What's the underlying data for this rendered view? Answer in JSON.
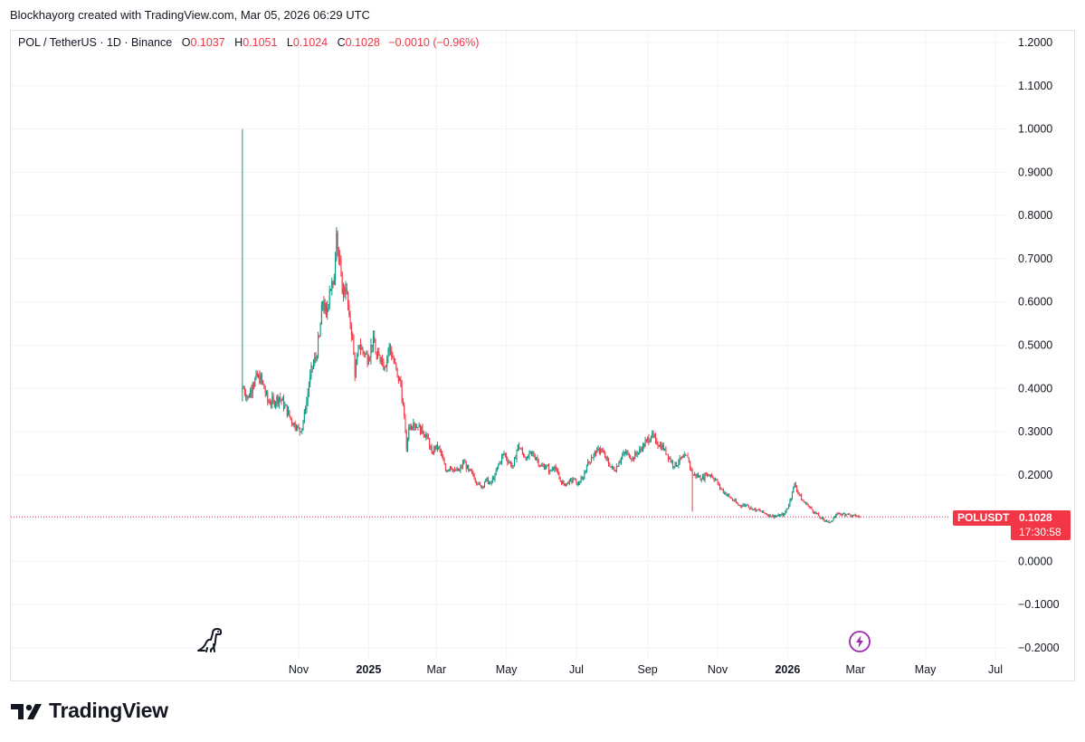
{
  "credit": "Blockhayorg created with TradingView.com, Mar 05, 2026 06:29 UTC",
  "legend": {
    "symbol": "POL / TetherUS · 1D · Binance",
    "open_label": "O",
    "open": "0.1037",
    "high_label": "H",
    "high": "0.1051",
    "low_label": "L",
    "low": "0.1024",
    "close_label": "C",
    "close": "0.1028",
    "change": "−0.0010 (−0.96%)"
  },
  "badges": {
    "ticker": "POLUSDT",
    "price": "0.1028",
    "countdown": "17:30:58"
  },
  "footer": {
    "brand": "TradingView"
  },
  "icons": {
    "logo": "tradingview-logo-icon",
    "dino": "dino-icon",
    "bolt": "lightning-icon"
  },
  "colors": {
    "up": "#089981",
    "down": "#f23645",
    "grid": "#f0f3fa",
    "axis_text": "#131722"
  },
  "chart_data": {
    "type": "candlestick",
    "title": "",
    "yticks": [
      "1.2000",
      "1.1000",
      "1.0000",
      "0.9000",
      "0.8000",
      "0.7000",
      "0.6000",
      "0.5000",
      "0.4000",
      "0.3000",
      "0.2000",
      "0.1000",
      "0.0000",
      "−0.1000",
      "−0.2000"
    ],
    "ylim": [
      -0.2,
      1.2
    ],
    "xlim": [
      "2024-08-15",
      "2026-07-15"
    ],
    "xticks": [
      {
        "date": "2024-11-01",
        "label": "Nov",
        "bold": false
      },
      {
        "date": "2025-01-01",
        "label": "2025",
        "bold": true
      },
      {
        "date": "2025-03-01",
        "label": "Mar",
        "bold": false
      },
      {
        "date": "2025-05-01",
        "label": "May",
        "bold": false
      },
      {
        "date": "2025-07-01",
        "label": "Jul",
        "bold": false
      },
      {
        "date": "2025-09-01",
        "label": "Sep",
        "bold": false
      },
      {
        "date": "2025-11-01",
        "label": "Nov",
        "bold": false
      },
      {
        "date": "2026-01-01",
        "label": "2026",
        "bold": true
      },
      {
        "date": "2026-03-01",
        "label": "Mar",
        "bold": false
      },
      {
        "date": "2026-05-01",
        "label": "May",
        "bold": false
      },
      {
        "date": "2026-07-01",
        "label": "Jul",
        "bold": false
      }
    ],
    "last_price": 0.1028,
    "series": [
      {
        "date": "2024-09-13",
        "close": 1.0,
        "high": 1.0,
        "low": 0.37
      },
      {
        "date": "2024-09-14",
        "close": 0.4
      },
      {
        "date": "2024-09-18",
        "close": 0.38
      },
      {
        "date": "2024-09-22",
        "close": 0.41
      },
      {
        "date": "2024-09-27",
        "close": 0.43
      },
      {
        "date": "2024-10-01",
        "close": 0.41
      },
      {
        "date": "2024-10-05",
        "close": 0.37
      },
      {
        "date": "2024-10-10",
        "close": 0.37
      },
      {
        "date": "2024-10-15",
        "close": 0.38
      },
      {
        "date": "2024-10-20",
        "close": 0.36
      },
      {
        "date": "2024-10-25",
        "close": 0.33
      },
      {
        "date": "2024-10-30",
        "close": 0.31
      },
      {
        "date": "2024-11-03",
        "close": 0.3
      },
      {
        "date": "2024-11-07",
        "close": 0.35
      },
      {
        "date": "2024-11-10",
        "close": 0.41
      },
      {
        "date": "2024-11-13",
        "close": 0.45
      },
      {
        "date": "2024-11-16",
        "close": 0.47
      },
      {
        "date": "2024-11-19",
        "close": 0.52
      },
      {
        "date": "2024-11-22",
        "close": 0.6
      },
      {
        "date": "2024-11-25",
        "close": 0.57
      },
      {
        "date": "2024-11-28",
        "close": 0.63
      },
      {
        "date": "2024-12-01",
        "close": 0.64
      },
      {
        "date": "2024-12-03",
        "close": 0.7
      },
      {
        "date": "2024-12-04",
        "close": 0.76
      },
      {
        "date": "2024-12-06",
        "close": 0.7
      },
      {
        "date": "2024-12-09",
        "close": 0.62
      },
      {
        "date": "2024-12-12",
        "close": 0.63
      },
      {
        "date": "2024-12-15",
        "close": 0.57
      },
      {
        "date": "2024-12-18",
        "close": 0.52
      },
      {
        "date": "2024-12-20",
        "close": 0.43
      },
      {
        "date": "2024-12-24",
        "close": 0.5
      },
      {
        "date": "2024-12-28",
        "close": 0.48
      },
      {
        "date": "2025-01-01",
        "close": 0.47
      },
      {
        "date": "2025-01-05",
        "close": 0.52
      },
      {
        "date": "2025-01-08",
        "close": 0.47
      },
      {
        "date": "2025-01-12",
        "close": 0.47
      },
      {
        "date": "2025-01-15",
        "close": 0.45
      },
      {
        "date": "2025-01-19",
        "close": 0.5
      },
      {
        "date": "2025-01-22",
        "close": 0.47
      },
      {
        "date": "2025-01-26",
        "close": 0.43
      },
      {
        "date": "2025-01-29",
        "close": 0.41
      },
      {
        "date": "2025-02-02",
        "close": 0.3
      },
      {
        "date": "2025-02-03",
        "close": 0.26
      },
      {
        "date": "2025-02-05",
        "close": 0.31
      },
      {
        "date": "2025-02-09",
        "close": 0.32
      },
      {
        "date": "2025-02-13",
        "close": 0.31
      },
      {
        "date": "2025-02-17",
        "close": 0.3
      },
      {
        "date": "2025-02-21",
        "close": 0.29
      },
      {
        "date": "2025-02-25",
        "close": 0.25
      },
      {
        "date": "2025-03-01",
        "close": 0.27
      },
      {
        "date": "2025-03-05",
        "close": 0.25
      },
      {
        "date": "2025-03-09",
        "close": 0.21
      },
      {
        "date": "2025-03-13",
        "close": 0.22
      },
      {
        "date": "2025-03-17",
        "close": 0.21
      },
      {
        "date": "2025-03-21",
        "close": 0.21
      },
      {
        "date": "2025-03-25",
        "close": 0.23
      },
      {
        "date": "2025-03-29",
        "close": 0.21
      },
      {
        "date": "2025-04-02",
        "close": 0.2
      },
      {
        "date": "2025-04-06",
        "close": 0.18
      },
      {
        "date": "2025-04-09",
        "close": 0.17
      },
      {
        "date": "2025-04-13",
        "close": 0.19
      },
      {
        "date": "2025-04-17",
        "close": 0.18
      },
      {
        "date": "2025-04-21",
        "close": 0.2
      },
      {
        "date": "2025-04-25",
        "close": 0.23
      },
      {
        "date": "2025-04-29",
        "close": 0.25
      },
      {
        "date": "2025-05-03",
        "close": 0.23
      },
      {
        "date": "2025-05-07",
        "close": 0.22
      },
      {
        "date": "2025-05-11",
        "close": 0.27
      },
      {
        "date": "2025-05-15",
        "close": 0.25
      },
      {
        "date": "2025-05-19",
        "close": 0.24
      },
      {
        "date": "2025-05-23",
        "close": 0.25
      },
      {
        "date": "2025-05-27",
        "close": 0.24
      },
      {
        "date": "2025-05-31",
        "close": 0.22
      },
      {
        "date": "2025-06-04",
        "close": 0.22
      },
      {
        "date": "2025-06-08",
        "close": 0.21
      },
      {
        "date": "2025-06-12",
        "close": 0.22
      },
      {
        "date": "2025-06-16",
        "close": 0.19
      },
      {
        "date": "2025-06-20",
        "close": 0.18
      },
      {
        "date": "2025-06-24",
        "close": 0.18
      },
      {
        "date": "2025-06-28",
        "close": 0.19
      },
      {
        "date": "2025-07-02",
        "close": 0.18
      },
      {
        "date": "2025-07-06",
        "close": 0.19
      },
      {
        "date": "2025-07-10",
        "close": 0.22
      },
      {
        "date": "2025-07-14",
        "close": 0.24
      },
      {
        "date": "2025-07-18",
        "close": 0.25
      },
      {
        "date": "2025-07-22",
        "close": 0.26
      },
      {
        "date": "2025-07-26",
        "close": 0.24
      },
      {
        "date": "2025-07-30",
        "close": 0.22
      },
      {
        "date": "2025-08-03",
        "close": 0.21
      },
      {
        "date": "2025-08-07",
        "close": 0.23
      },
      {
        "date": "2025-08-11",
        "close": 0.25
      },
      {
        "date": "2025-08-15",
        "close": 0.25
      },
      {
        "date": "2025-08-19",
        "close": 0.24
      },
      {
        "date": "2025-08-23",
        "close": 0.25
      },
      {
        "date": "2025-08-27",
        "close": 0.26
      },
      {
        "date": "2025-08-31",
        "close": 0.28
      },
      {
        "date": "2025-09-04",
        "close": 0.29
      },
      {
        "date": "2025-09-08",
        "close": 0.28
      },
      {
        "date": "2025-09-12",
        "close": 0.27
      },
      {
        "date": "2025-09-16",
        "close": 0.26
      },
      {
        "date": "2025-09-20",
        "close": 0.24
      },
      {
        "date": "2025-09-24",
        "close": 0.22
      },
      {
        "date": "2025-09-28",
        "close": 0.23
      },
      {
        "date": "2025-10-02",
        "close": 0.24
      },
      {
        "date": "2025-10-06",
        "close": 0.24
      },
      {
        "date": "2025-10-10",
        "close": 0.2,
        "low": 0.115
      },
      {
        "date": "2025-10-14",
        "close": 0.2
      },
      {
        "date": "2025-10-18",
        "close": 0.19
      },
      {
        "date": "2025-10-22",
        "close": 0.2
      },
      {
        "date": "2025-10-26",
        "close": 0.2
      },
      {
        "date": "2025-10-30",
        "close": 0.19
      },
      {
        "date": "2025-11-03",
        "close": 0.17
      },
      {
        "date": "2025-11-07",
        "close": 0.16
      },
      {
        "date": "2025-11-11",
        "close": 0.15
      },
      {
        "date": "2025-11-15",
        "close": 0.14
      },
      {
        "date": "2025-11-19",
        "close": 0.13
      },
      {
        "date": "2025-11-23",
        "close": 0.13
      },
      {
        "date": "2025-11-27",
        "close": 0.13
      },
      {
        "date": "2025-12-01",
        "close": 0.12
      },
      {
        "date": "2025-12-05",
        "close": 0.12
      },
      {
        "date": "2025-12-09",
        "close": 0.115
      },
      {
        "date": "2025-12-13",
        "close": 0.11
      },
      {
        "date": "2025-12-17",
        "close": 0.105
      },
      {
        "date": "2025-12-21",
        "close": 0.105
      },
      {
        "date": "2025-12-25",
        "close": 0.105
      },
      {
        "date": "2025-12-29",
        "close": 0.11
      },
      {
        "date": "2026-01-02",
        "close": 0.13
      },
      {
        "date": "2026-01-05",
        "close": 0.16
      },
      {
        "date": "2026-01-07",
        "close": 0.18
      },
      {
        "date": "2026-01-10",
        "close": 0.16
      },
      {
        "date": "2026-01-14",
        "close": 0.14
      },
      {
        "date": "2026-01-18",
        "close": 0.13
      },
      {
        "date": "2026-01-22",
        "close": 0.12
      },
      {
        "date": "2026-01-26",
        "close": 0.11
      },
      {
        "date": "2026-01-30",
        "close": 0.1
      },
      {
        "date": "2026-02-03",
        "close": 0.095
      },
      {
        "date": "2026-02-06",
        "close": 0.09
      },
      {
        "date": "2026-02-10",
        "close": 0.1
      },
      {
        "date": "2026-02-14",
        "close": 0.11
      },
      {
        "date": "2026-02-18",
        "close": 0.11
      },
      {
        "date": "2026-02-22",
        "close": 0.11
      },
      {
        "date": "2026-02-26",
        "close": 0.105
      },
      {
        "date": "2026-03-01",
        "close": 0.105
      },
      {
        "date": "2026-03-05",
        "close": 0.1028
      }
    ]
  }
}
